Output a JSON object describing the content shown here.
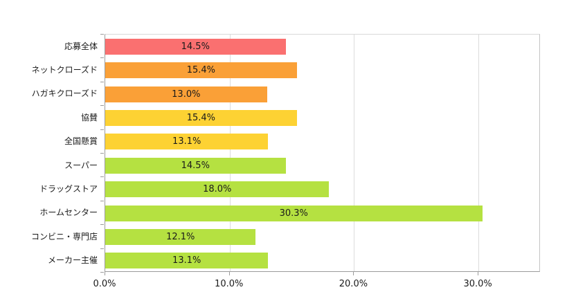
{
  "chart_data": {
    "type": "bar",
    "orientation": "horizontal",
    "title": "",
    "xlabel": "",
    "ylabel": "",
    "categories": [
      "応募全体",
      "ネットクローズド",
      "ハガキクローズド",
      "協賛",
      "全国懸賞",
      "スーパー",
      "ドラッグストア",
      "ホームセンター",
      "コンビニ・専門店",
      "メーカー主催"
    ],
    "values": [
      14.5,
      15.4,
      13.0,
      15.4,
      13.1,
      14.5,
      18.0,
      30.3,
      12.1,
      13.1
    ],
    "value_labels": [
      "14.5%",
      "15.4%",
      "13.0%",
      "15.4%",
      "13.1%",
      "14.5%",
      "18.0%",
      "30.3%",
      "12.1%",
      "13.1%"
    ],
    "bar_colors": [
      "#fa7070",
      "#faa037",
      "#faa037",
      "#fdd233",
      "#fdd233",
      "#b5e141",
      "#b5e141",
      "#b5e141",
      "#b5e141",
      "#b5e141"
    ],
    "x_ticks": [
      0,
      10,
      20,
      30
    ],
    "x_tick_labels": [
      "0.0%",
      "10.0%",
      "20.0%",
      "30.0%"
    ],
    "xlim": [
      0,
      35
    ],
    "grid": true,
    "legend": "none",
    "colors": {
      "grid": "#dcdcdc",
      "axis": "#9b9b9b",
      "plot_border_top": "#d9d9d9",
      "plot_border_right": "#c3c3c3",
      "text": "#1a1a1a",
      "background": "#ffffff"
    }
  }
}
